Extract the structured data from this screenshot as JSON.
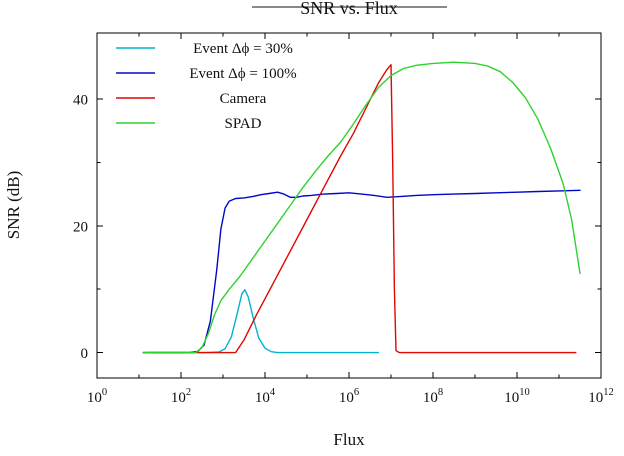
{
  "figure": {
    "title": "SNR vs. Flux",
    "xlabel": "Flux",
    "ylabel": "SNR (dB)"
  },
  "chart_data": {
    "type": "line",
    "title": "SNR vs. Flux",
    "xlabel": "Flux",
    "ylabel": "SNR (dB)",
    "x_scale": "log10",
    "xlim_exponents": [
      0,
      12
    ],
    "ylim": [
      -4,
      50.4
    ],
    "x_major_tick_exponents": [
      0,
      2,
      4,
      6,
      8,
      10,
      12
    ],
    "x_minor_tick_exponents": [
      1,
      3,
      5,
      7,
      9,
      11
    ],
    "y_major_ticks": [
      0,
      20,
      40
    ],
    "y_minor_ticks": [
      10,
      30
    ],
    "grid": false,
    "legend_position": "top-left-inside",
    "axis_color": "#000000",
    "series": [
      {
        "id": "event-30",
        "name": "Event Δϕ = 30%",
        "color": "#00b4cc",
        "points_log10x_y": [
          [
            1.1,
            0
          ],
          [
            2.0,
            0
          ],
          [
            2.6,
            0
          ],
          [
            2.9,
            0.1
          ],
          [
            3.05,
            0.6
          ],
          [
            3.2,
            2.5
          ],
          [
            3.35,
            6.5
          ],
          [
            3.45,
            9.3
          ],
          [
            3.52,
            9.9
          ],
          [
            3.6,
            8.8
          ],
          [
            3.72,
            5.5
          ],
          [
            3.85,
            2.3
          ],
          [
            4.0,
            0.7
          ],
          [
            4.15,
            0.15
          ],
          [
            4.3,
            0
          ],
          [
            5.0,
            0
          ],
          [
            6.0,
            0
          ],
          [
            6.7,
            0
          ]
        ]
      },
      {
        "id": "event-100",
        "name": "Event Δϕ = 100%",
        "color": "#0008c8",
        "points_log10x_y": [
          [
            1.1,
            0
          ],
          [
            2.2,
            0
          ],
          [
            2.4,
            0.2
          ],
          [
            2.55,
            1.2
          ],
          [
            2.7,
            5
          ],
          [
            2.85,
            13
          ],
          [
            2.95,
            19.5
          ],
          [
            3.05,
            22.8
          ],
          [
            3.15,
            23.9
          ],
          [
            3.3,
            24.3
          ],
          [
            3.5,
            24.4
          ],
          [
            3.7,
            24.6
          ],
          [
            3.9,
            24.9
          ],
          [
            4.1,
            25.1
          ],
          [
            4.3,
            25.3
          ],
          [
            4.45,
            25.0
          ],
          [
            4.6,
            24.5
          ],
          [
            4.75,
            24.5
          ],
          [
            4.9,
            24.7
          ],
          [
            5.1,
            24.8
          ],
          [
            5.4,
            25.0
          ],
          [
            5.7,
            25.1
          ],
          [
            6.0,
            25.2
          ],
          [
            6.3,
            25.0
          ],
          [
            6.6,
            24.8
          ],
          [
            6.9,
            24.5
          ],
          [
            7.2,
            24.6
          ],
          [
            7.6,
            24.8
          ],
          [
            8.0,
            24.9
          ],
          [
            8.5,
            25.0
          ],
          [
            9.0,
            25.1
          ],
          [
            9.5,
            25.2
          ],
          [
            10.0,
            25.3
          ],
          [
            10.5,
            25.4
          ],
          [
            11.0,
            25.5
          ],
          [
            11.5,
            25.6
          ]
        ]
      },
      {
        "id": "camera",
        "name": "Camera",
        "color": "#e10600",
        "points_log10x_y": [
          [
            1.2,
            0
          ],
          [
            2.0,
            0
          ],
          [
            3.0,
            0
          ],
          [
            3.3,
            0
          ],
          [
            3.5,
            2
          ],
          [
            3.8,
            6
          ],
          [
            4.2,
            11
          ],
          [
            4.6,
            16
          ],
          [
            5.0,
            21
          ],
          [
            5.4,
            26
          ],
          [
            5.8,
            31
          ],
          [
            6.1,
            34.5
          ],
          [
            6.4,
            38.5
          ],
          [
            6.7,
            42.5
          ],
          [
            6.9,
            44.6
          ],
          [
            7.0,
            45.4
          ],
          [
            7.04,
            30
          ],
          [
            7.08,
            10
          ],
          [
            7.12,
            0.3
          ],
          [
            7.2,
            0
          ],
          [
            8.0,
            0
          ],
          [
            9.0,
            0
          ],
          [
            10.0,
            0
          ],
          [
            11.0,
            0
          ],
          [
            11.4,
            0
          ]
        ]
      },
      {
        "id": "spad",
        "name": "SPAD",
        "color": "#2ed22e",
        "points_log10x_y": [
          [
            1.1,
            0
          ],
          [
            2.0,
            0
          ],
          [
            2.35,
            0
          ],
          [
            2.5,
            0.8
          ],
          [
            2.65,
            3
          ],
          [
            2.8,
            6
          ],
          [
            2.95,
            8.2
          ],
          [
            3.15,
            10
          ],
          [
            3.4,
            12
          ],
          [
            3.7,
            14.8
          ],
          [
            4.0,
            17.6
          ],
          [
            4.3,
            20.4
          ],
          [
            4.6,
            23.2
          ],
          [
            4.9,
            26
          ],
          [
            5.2,
            28.6
          ],
          [
            5.5,
            31
          ],
          [
            5.8,
            33.2
          ],
          [
            6.1,
            36
          ],
          [
            6.4,
            39
          ],
          [
            6.7,
            41.8
          ],
          [
            7.0,
            43.7
          ],
          [
            7.3,
            44.8
          ],
          [
            7.6,
            45.3
          ],
          [
            8.0,
            45.6
          ],
          [
            8.5,
            45.8
          ],
          [
            9.0,
            45.6
          ],
          [
            9.3,
            45.2
          ],
          [
            9.6,
            44.3
          ],
          [
            9.9,
            42.6
          ],
          [
            10.2,
            40.2
          ],
          [
            10.5,
            36.8
          ],
          [
            10.8,
            32.2
          ],
          [
            11.1,
            26.6
          ],
          [
            11.3,
            21
          ],
          [
            11.5,
            12.5
          ]
        ]
      }
    ]
  }
}
